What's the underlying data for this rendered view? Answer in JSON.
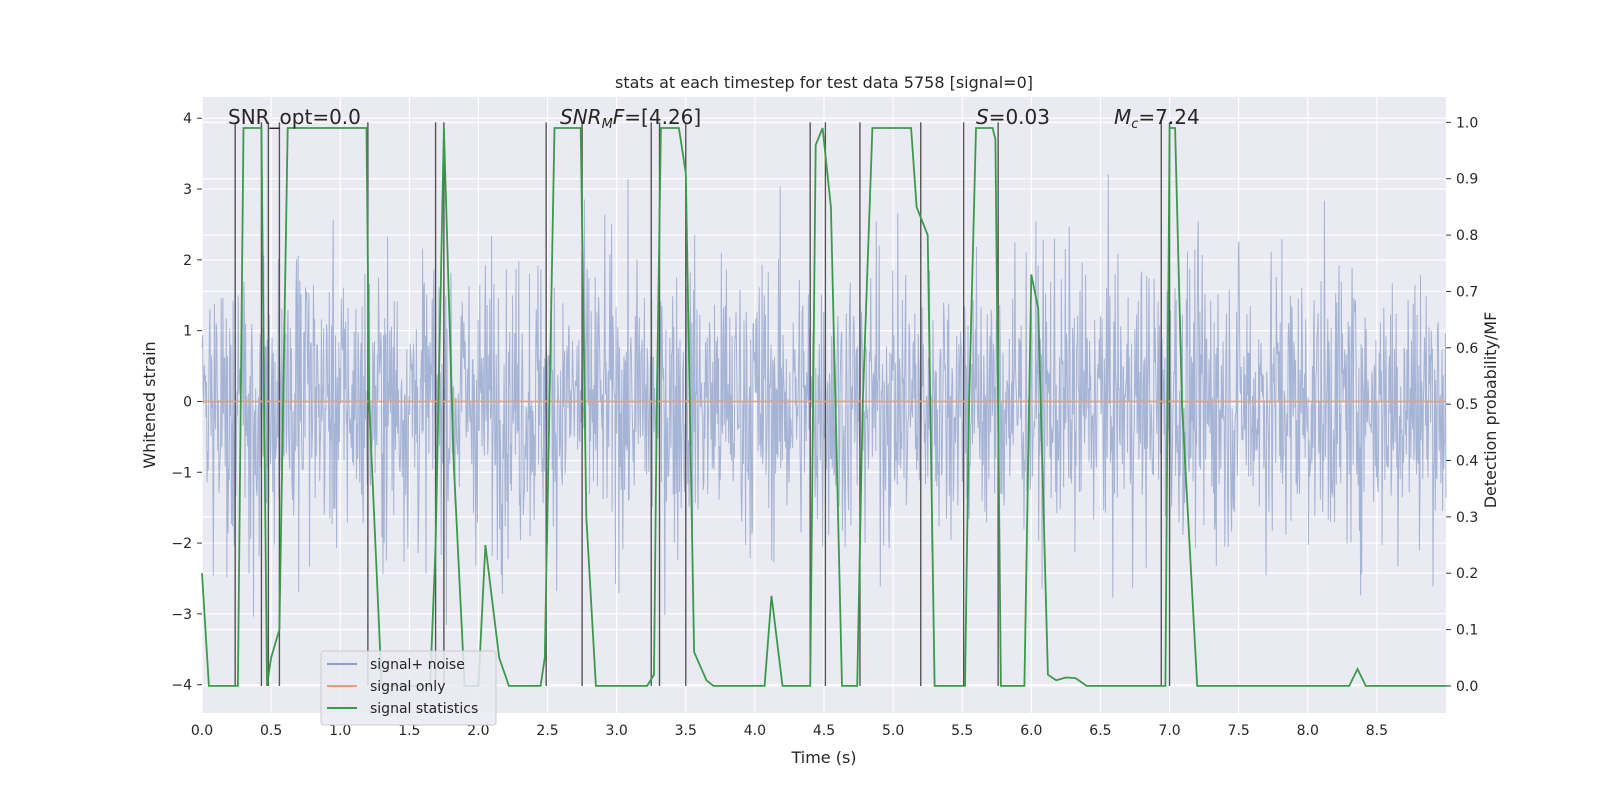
{
  "chart_data": {
    "type": "line",
    "title": "stats at each timestep for test data 5758 [signal=0]",
    "xlabel": "Time (s)",
    "ylabel": "Whitened strain",
    "y2label": "Detection probability/MF",
    "xlim": [
      0.0,
      9.0
    ],
    "ylim": [
      -4.4,
      4.3
    ],
    "y2lim": [
      -0.048,
      1.045
    ],
    "xticks": [
      "0.0",
      "0.5",
      "1.0",
      "1.5",
      "2.0",
      "2.5",
      "3.0",
      "3.5",
      "4.0",
      "4.5",
      "5.0",
      "5.5",
      "6.0",
      "6.5",
      "7.0",
      "7.5",
      "8.0",
      "8.5"
    ],
    "yticks": [
      "4",
      "3",
      "2",
      "1",
      "0",
      "−1",
      "−2",
      "−3",
      "−4"
    ],
    "y2ticks": [
      "1.0",
      "0.9",
      "0.8",
      "0.7",
      "0.6",
      "0.5",
      "0.4",
      "0.3",
      "0.2",
      "0.1",
      "0.0"
    ],
    "grid": true,
    "legend_position": "lower-left",
    "annotations": {
      "snr_opt": "SNR_opt=0.0",
      "snr_mf_pre": "SNR",
      "snr_mf_sub": "M",
      "snr_mf_post": "F=[4.26]",
      "s_label": "S",
      "s_value": "=0.03",
      "mc_pre": "M",
      "mc_sub": "c",
      "mc_value": "=7.24"
    },
    "series": [
      {
        "name": "signal+ noise",
        "color": "#8da0cb",
        "description": "noisy whitened strain, std about 1"
      },
      {
        "name": "signal only",
        "color": "#e8a07c",
        "values_constant": 0
      },
      {
        "name": "signal statistics",
        "color": "#3a9a4a",
        "x": [
          0.0,
          0.05,
          0.23,
          0.26,
          0.3,
          0.42,
          0.43,
          0.47,
          0.5,
          0.56,
          0.62,
          0.7,
          0.8,
          1.0,
          1.1,
          1.19,
          1.21,
          1.3,
          1.5,
          1.6,
          1.65,
          1.69,
          1.75,
          1.82,
          1.9,
          2.0,
          2.05,
          2.15,
          2.22,
          2.3,
          2.4,
          2.45,
          2.48,
          2.55,
          2.6,
          2.7,
          2.74,
          2.78,
          2.85,
          2.9,
          3.0,
          3.15,
          3.22,
          3.27,
          3.29,
          3.32,
          3.45,
          3.5,
          3.56,
          3.65,
          3.7,
          3.8,
          3.9,
          4.0,
          4.07,
          4.12,
          4.2,
          4.25,
          4.35,
          4.4,
          4.44,
          4.49,
          4.55,
          4.63,
          4.72,
          4.74,
          4.78,
          4.85,
          4.9,
          5.0,
          5.1,
          5.13,
          5.17,
          5.25,
          5.3,
          5.4,
          5.5,
          5.52,
          5.55,
          5.6,
          5.67,
          5.72,
          5.74,
          5.78,
          5.84,
          5.9,
          5.95,
          6.0,
          6.05,
          6.12,
          6.18,
          6.25,
          6.32,
          6.4,
          6.5,
          6.6,
          6.7,
          6.8,
          6.9,
          6.95,
          6.97,
          7.0,
          7.04,
          7.09,
          7.2,
          7.4,
          7.6,
          7.8,
          8.0,
          8.2,
          8.3,
          8.36,
          8.42,
          8.5,
          8.7,
          8.8,
          9.0
        ],
        "values": [
          0.2,
          0.0,
          0.0,
          0.0,
          0.99,
          0.99,
          0.99,
          0.0,
          0.05,
          0.1,
          0.99,
          0.99,
          0.99,
          0.99,
          0.99,
          0.99,
          0.5,
          0.0,
          0.0,
          0.0,
          0.0,
          0.25,
          0.99,
          0.4,
          0.0,
          0.0,
          0.25,
          0.05,
          0.0,
          0.0,
          0.0,
          0.0,
          0.05,
          0.99,
          0.99,
          0.99,
          0.99,
          0.3,
          0.0,
          0.0,
          0.0,
          0.0,
          0.0,
          0.02,
          0.5,
          0.99,
          0.99,
          0.91,
          0.06,
          0.01,
          0.0,
          0.0,
          0.0,
          0.0,
          0.0,
          0.16,
          0.0,
          0.0,
          0.0,
          0.0,
          0.96,
          0.99,
          0.85,
          0.0,
          0.0,
          0.0,
          0.5,
          0.99,
          0.99,
          0.99,
          0.99,
          0.99,
          0.85,
          0.8,
          0.0,
          0.0,
          0.0,
          0.0,
          0.5,
          0.99,
          0.99,
          0.99,
          0.97,
          0.0,
          0.0,
          0.0,
          0.0,
          0.73,
          0.67,
          0.02,
          0.01,
          0.015,
          0.014,
          0.0,
          0.0,
          0.0,
          0.0,
          0.0,
          0.0,
          0.0,
          0.0,
          0.99,
          0.99,
          0.5,
          0.0,
          0.0,
          0.0,
          0.0,
          0.0,
          0.0,
          0.0,
          0.03,
          0.0,
          0.0,
          0.0,
          0.0,
          0.0
        ]
      }
    ],
    "vertical_markers": [
      0.24,
      0.43,
      0.48,
      0.56,
      1.2,
      1.69,
      1.75,
      2.49,
      2.75,
      3.25,
      3.31,
      3.5,
      4.4,
      4.51,
      4.76,
      5.2,
      5.51,
      5.76,
      6.94,
      7.0
    ]
  },
  "legend": {
    "items": [
      "signal+ noise",
      "signal only",
      "signal statistics"
    ]
  },
  "colors": {
    "axes_bg": "#eaeaf2",
    "grid": "#ffffff",
    "noise": "#8da0cb",
    "signal_only": "#e8a07c",
    "stats": "#3a9a4a",
    "markers": "#555555"
  }
}
